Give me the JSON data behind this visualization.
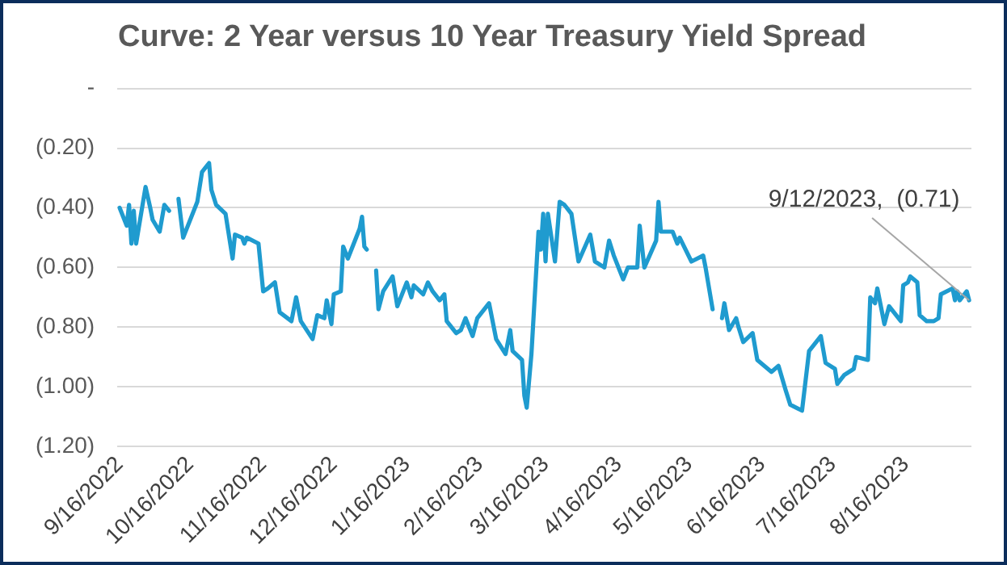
{
  "chart_data": {
    "type": "line",
    "title": "Curve: 2 Year versus 10 Year Treasury Yield Spread",
    "x": [
      "2022-09-16",
      "2022-09-19",
      "2022-09-20",
      "2022-09-21",
      "2022-09-22",
      "2022-09-23",
      "2022-09-27",
      "2022-09-29",
      "2022-09-30",
      "2022-10-03",
      "2022-10-05",
      "2022-10-07",
      "2022-10-10",
      "2022-10-11",
      "2022-10-13",
      "2022-10-19",
      "2022-10-21",
      "2022-10-24",
      "2022-10-25",
      "2022-10-27",
      "2022-10-31",
      "2022-11-03",
      "2022-11-04",
      "2022-11-07",
      "2022-11-08",
      "2022-11-09",
      "2022-11-14",
      "2022-11-16",
      "2022-11-18",
      "2022-11-21",
      "2022-11-23",
      "2022-11-28",
      "2022-11-30",
      "2022-12-02",
      "2022-12-07",
      "2022-12-09",
      "2022-12-12",
      "2022-12-13",
      "2022-12-15",
      "2022-12-16",
      "2022-12-19",
      "2022-12-20",
      "2022-12-22",
      "2022-12-27",
      "2022-12-28",
      "2022-12-29",
      "2022-12-30",
      "2023-01-02",
      "2023-01-03",
      "2023-01-04",
      "2023-01-06",
      "2023-01-10",
      "2023-01-12",
      "2023-01-16",
      "2023-01-18",
      "2023-01-19",
      "2023-01-23",
      "2023-01-25",
      "2023-01-27",
      "2023-01-30",
      "2023-02-01",
      "2023-02-02",
      "2023-02-06",
      "2023-02-08",
      "2023-02-10",
      "2023-02-13",
      "2023-02-15",
      "2023-02-20",
      "2023-02-23",
      "2023-02-27",
      "2023-03-01",
      "2023-03-02",
      "2023-03-06",
      "2023-03-07",
      "2023-03-08",
      "2023-03-10",
      "2023-03-13",
      "2023-03-14",
      "2023-03-15",
      "2023-03-16",
      "2023-03-17",
      "2023-03-20",
      "2023-03-22",
      "2023-03-24",
      "2023-03-27",
      "2023-03-30",
      "2023-04-04",
      "2023-04-06",
      "2023-04-10",
      "2023-04-12",
      "2023-04-14",
      "2023-04-18",
      "2023-04-20",
      "2023-04-24",
      "2023-04-25",
      "2023-04-27",
      "2023-05-02",
      "2023-05-03",
      "2023-05-04",
      "2023-05-09",
      "2023-05-11",
      "2023-05-12",
      "2023-05-17",
      "2023-05-22",
      "2023-05-23",
      "2023-05-26",
      "2023-05-29",
      "2023-05-30",
      "2023-05-31",
      "2023-06-02",
      "2023-06-05",
      "2023-06-06",
      "2023-06-08",
      "2023-06-12",
      "2023-06-14",
      "2023-06-20",
      "2023-06-23",
      "2023-06-26",
      "2023-06-28",
      "2023-07-03",
      "2023-07-06",
      "2023-07-10",
      "2023-07-11",
      "2023-07-13",
      "2023-07-17",
      "2023-07-18",
      "2023-07-21",
      "2023-07-25",
      "2023-07-26",
      "2023-07-31",
      "2023-08-01",
      "2023-08-03",
      "2023-08-04",
      "2023-08-07",
      "2023-08-09",
      "2023-08-14",
      "2023-08-15",
      "2023-08-17",
      "2023-08-18",
      "2023-08-21",
      "2023-08-22",
      "2023-08-25",
      "2023-08-28",
      "2023-08-30",
      "2023-08-31",
      "2023-09-05",
      "2023-09-06",
      "2023-09-07",
      "2023-09-08",
      "2023-09-11",
      "2023-09-12"
    ],
    "series": [
      {
        "color": "#1f9bcf",
        "values": [
          -0.4,
          -0.46,
          -0.39,
          -0.52,
          -0.41,
          -0.52,
          -0.33,
          -0.4,
          -0.44,
          -0.48,
          -0.39,
          -0.41,
          null,
          -0.37,
          -0.5,
          -0.38,
          -0.28,
          -0.25,
          -0.34,
          -0.39,
          -0.42,
          -0.57,
          -0.49,
          -0.5,
          -0.52,
          -0.5,
          -0.52,
          -0.68,
          -0.67,
          -0.65,
          -0.75,
          -0.78,
          -0.7,
          -0.78,
          -0.84,
          -0.76,
          -0.77,
          -0.71,
          -0.79,
          -0.69,
          -0.68,
          -0.53,
          -0.57,
          -0.47,
          -0.43,
          -0.53,
          -0.54,
          null,
          -0.61,
          -0.74,
          -0.68,
          -0.63,
          -0.73,
          -0.65,
          -0.7,
          -0.66,
          -0.69,
          -0.65,
          -0.68,
          -0.71,
          -0.69,
          -0.78,
          -0.82,
          -0.81,
          -0.77,
          -0.83,
          -0.77,
          -0.72,
          -0.84,
          -0.89,
          -0.81,
          -0.88,
          -0.91,
          -1.03,
          -1.07,
          -0.89,
          -0.48,
          -0.54,
          -0.42,
          -0.58,
          -0.42,
          -0.58,
          -0.38,
          -0.39,
          -0.42,
          -0.58,
          -0.49,
          -0.58,
          -0.6,
          -0.51,
          -0.56,
          -0.64,
          -0.6,
          -0.6,
          -0.46,
          -0.6,
          -0.51,
          -0.38,
          -0.48,
          -0.48,
          -0.52,
          -0.5,
          -0.58,
          -0.56,
          -0.6,
          -0.74,
          null,
          -0.77,
          -0.72,
          -0.81,
          -0.77,
          -0.8,
          -0.85,
          -0.82,
          -0.91,
          -0.95,
          -0.93,
          -1.01,
          -1.06,
          -1.08,
          -0.88,
          -0.84,
          -0.83,
          -0.92,
          -0.94,
          -0.99,
          -0.96,
          -0.94,
          -0.9,
          -0.91,
          -0.7,
          -0.72,
          -0.67,
          -0.79,
          -0.73,
          -0.78,
          -0.66,
          -0.65,
          -0.63,
          -0.65,
          -0.76,
          -0.78,
          -0.78,
          -0.77,
          -0.69,
          -0.67,
          -0.71,
          -0.68,
          -0.71,
          -0.68,
          -0.71
        ]
      }
    ],
    "xlim": [
      "2022-09-15",
      "2023-09-13"
    ],
    "xticks": [
      {
        "value": "2022-09-16",
        "label": "9/16/2022"
      },
      {
        "value": "2022-10-16",
        "label": "10/16/2022"
      },
      {
        "value": "2022-11-16",
        "label": "11/16/2022"
      },
      {
        "value": "2022-12-16",
        "label": "12/16/2022"
      },
      {
        "value": "2023-01-16",
        "label": "1/16/2023"
      },
      {
        "value": "2023-02-16",
        "label": "2/16/2023"
      },
      {
        "value": "2023-03-16",
        "label": "3/16/2023"
      },
      {
        "value": "2023-04-16",
        "label": "4/16/2023"
      },
      {
        "value": "2023-05-16",
        "label": "5/16/2023"
      },
      {
        "value": "2023-06-16",
        "label": "6/16/2023"
      },
      {
        "value": "2023-07-16",
        "label": "7/16/2023"
      },
      {
        "value": "2023-08-16",
        "label": "8/16/2023"
      }
    ],
    "ylim": [
      -1.2,
      0
    ],
    "yticks": [
      {
        "value": 0,
        "label": "-"
      },
      {
        "value": -0.2,
        "label": "(0.20)"
      },
      {
        "value": -0.4,
        "label": "(0.40)"
      },
      {
        "value": -0.6,
        "label": "(0.60)"
      },
      {
        "value": -0.8,
        "label": "(0.80)"
      },
      {
        "value": -1,
        "label": "(1.00)"
      },
      {
        "value": -1.2,
        "label": "(1.20)"
      }
    ],
    "grid": "y",
    "legend": false,
    "marker": "none",
    "line_style": "solid",
    "annotations": [
      {
        "text": "9/12/2023,  (0.71)",
        "x": "2023-09-12",
        "y": -0.71
      }
    ]
  }
}
